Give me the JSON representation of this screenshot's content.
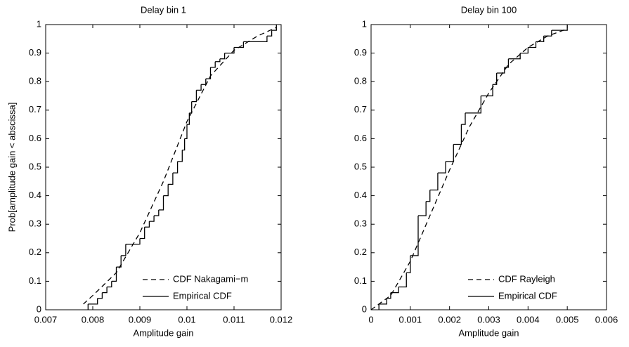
{
  "chart_data": [
    {
      "type": "line",
      "title": "Delay bin 1",
      "x_label": "Amplitude gain",
      "y_label": "Prob[amplitude gain < abscissa]",
      "xlim": [
        0.007,
        0.012
      ],
      "xticks": [
        0.007,
        0.008,
        0.009,
        0.01,
        0.011,
        0.012
      ],
      "ylim": [
        0,
        1
      ],
      "yticks": [
        0,
        0.1,
        0.2,
        0.3,
        0.4,
        0.5,
        0.6,
        0.7,
        0.8,
        0.9,
        1
      ],
      "legend": "lower right",
      "series": [
        {
          "name": "CDF Nakagami−m",
          "color": "#000000",
          "dash": true,
          "step": false,
          "x": [
            0.0078,
            0.008,
            0.0085,
            0.009,
            0.0095,
            0.01,
            0.0105,
            0.011,
            0.0115,
            0.0119
          ],
          "values": [
            0.02,
            0.05,
            0.13,
            0.27,
            0.45,
            0.66,
            0.82,
            0.91,
            0.96,
            0.99
          ]
        },
        {
          "name": "Empirical CDF",
          "color": "#000000",
          "dash": false,
          "step": true,
          "x": [
            0.0079,
            0.0081,
            0.0082,
            0.0083,
            0.0084,
            0.0085,
            0.0086,
            0.0087,
            0.009,
            0.0091,
            0.0092,
            0.0093,
            0.0094,
            0.0095,
            0.0096,
            0.0097,
            0.0098,
            0.0099,
            0.00995,
            0.01,
            0.01005,
            0.0101,
            0.0102,
            0.0103,
            0.0104,
            0.0105,
            0.0106,
            0.0107,
            0.0108,
            0.011,
            0.0112,
            0.0117,
            0.0118,
            0.0119
          ],
          "values": [
            0.02,
            0.04,
            0.06,
            0.08,
            0.1,
            0.15,
            0.19,
            0.23,
            0.25,
            0.29,
            0.31,
            0.33,
            0.35,
            0.4,
            0.44,
            0.48,
            0.52,
            0.56,
            0.6,
            0.65,
            0.69,
            0.73,
            0.77,
            0.79,
            0.81,
            0.85,
            0.87,
            0.88,
            0.9,
            0.92,
            0.94,
            0.96,
            0.98,
            1
          ]
        }
      ]
    },
    {
      "type": "line",
      "title": "Delay bin 100",
      "x_label": "Amplitude gain",
      "xlim": [
        0,
        0.006
      ],
      "xticks": [
        0,
        0.001,
        0.002,
        0.003,
        0.004,
        0.005,
        0.006
      ],
      "ylim": [
        0,
        1
      ],
      "yticks": [
        0,
        0.1,
        0.2,
        0.3,
        0.4,
        0.5,
        0.6,
        0.7,
        0.8,
        0.9,
        1
      ],
      "legend": "lower right",
      "series": [
        {
          "name": "CDF Rayleigh",
          "color": "#000000",
          "dash": true,
          "step": false,
          "x": [
            0,
            0.0005,
            0.001,
            0.0015,
            0.002,
            0.0025,
            0.003,
            0.0035,
            0.004,
            0.0045,
            0.005
          ],
          "values": [
            0,
            0.05,
            0.17,
            0.33,
            0.49,
            0.64,
            0.76,
            0.86,
            0.92,
            0.96,
            0.985
          ]
        },
        {
          "name": "Empirical CDF",
          "color": "#000000",
          "dash": false,
          "step": true,
          "x": [
            0.0002,
            0.0004,
            0.0005,
            0.0007,
            0.0009,
            0.001,
            0.0012,
            0.0014,
            0.0015,
            0.0017,
            0.0019,
            0.0021,
            0.0023,
            0.0024,
            0.0028,
            0.0031,
            0.0032,
            0.0034,
            0.0035,
            0.0038,
            0.004,
            0.0042,
            0.0044,
            0.0046,
            0.005
          ],
          "values": [
            0.02,
            0.04,
            0.06,
            0.08,
            0.13,
            0.19,
            0.33,
            0.38,
            0.42,
            0.48,
            0.52,
            0.58,
            0.65,
            0.69,
            0.75,
            0.79,
            0.83,
            0.85,
            0.88,
            0.9,
            0.92,
            0.94,
            0.96,
            0.98,
            1
          ]
        }
      ]
    }
  ]
}
